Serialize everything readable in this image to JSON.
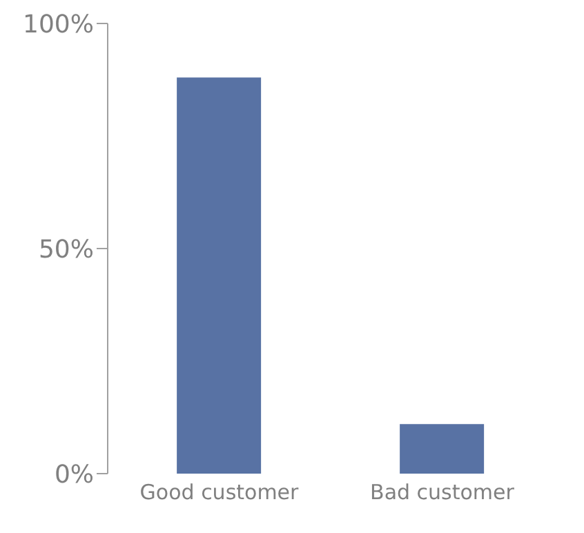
{
  "chart_data": {
    "type": "bar",
    "categories": [
      "Good customer",
      "Bad customer"
    ],
    "values": [
      88,
      11
    ],
    "color": "#5872a4",
    "ylim": [
      0,
      100
    ],
    "yticks": [
      {
        "value": 0,
        "label": "0%"
      },
      {
        "value": 50,
        "label": "50%"
      },
      {
        "value": 100,
        "label": "100%"
      }
    ],
    "grid": false
  }
}
